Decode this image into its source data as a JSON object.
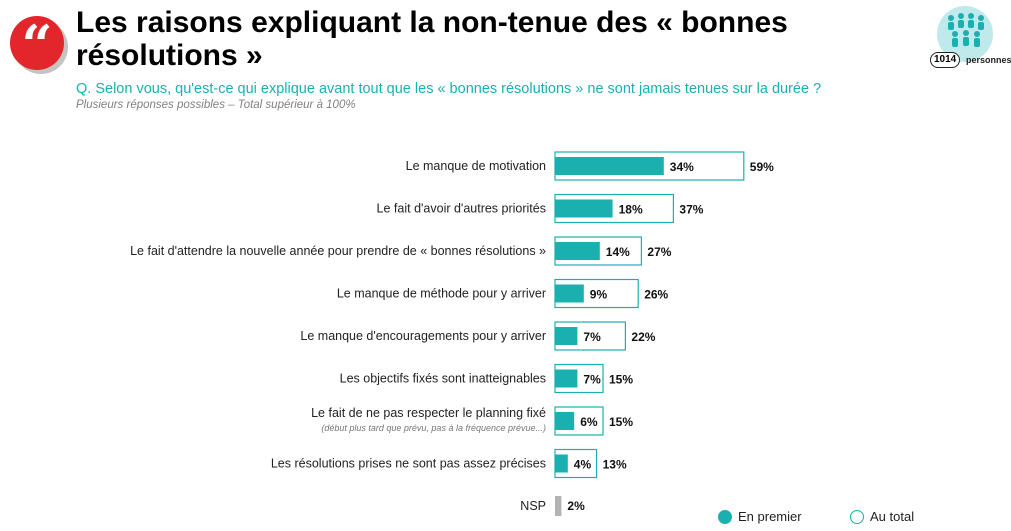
{
  "header": {
    "title": "Les raisons expliquant la non-tenue des « bonnes résolutions »",
    "question_prefix": "Q. Selon vous, qu'est-ce qui explique avant tout que les « bonnes résolutions » ne sont jamais tenues sur la durée ?",
    "note": "Plusieurs réponses possibles – Total supérieur à 100%",
    "sample_count": "1014",
    "sample_unit": "personnes"
  },
  "colors": {
    "accent": "#1ab0b0",
    "brand_red": "#e3262b",
    "nsp_grey": "#b3b3b3"
  },
  "chart_data": {
    "type": "bar",
    "orientation": "horizontal",
    "categories": [
      "Le manque de motivation",
      "Le fait d'avoir d'autres priorités",
      "Le fait d'attendre la nouvelle année pour prendre de « bonnes résolutions »",
      "Le manque de méthode pour y arriver",
      "Le manque d'encouragements pour y arriver",
      "Les objectifs fixés sont inatteignables",
      "Le fait de ne pas respecter le planning fixé",
      "Les résolutions prises ne sont pas assez précises",
      "NSP"
    ],
    "sublabels": [
      "",
      "",
      "",
      "",
      "",
      "",
      "(début plus tard que prévu, pas à la fréquence prévue...)",
      "",
      ""
    ],
    "series": [
      {
        "name": "En premier",
        "values": [
          34,
          18,
          14,
          9,
          7,
          7,
          6,
          4,
          null
        ]
      },
      {
        "name": "Au total",
        "values": [
          59,
          37,
          27,
          26,
          22,
          15,
          15,
          13,
          2
        ]
      }
    ],
    "value_suffix": "%",
    "legend_position": "bottom-right"
  }
}
